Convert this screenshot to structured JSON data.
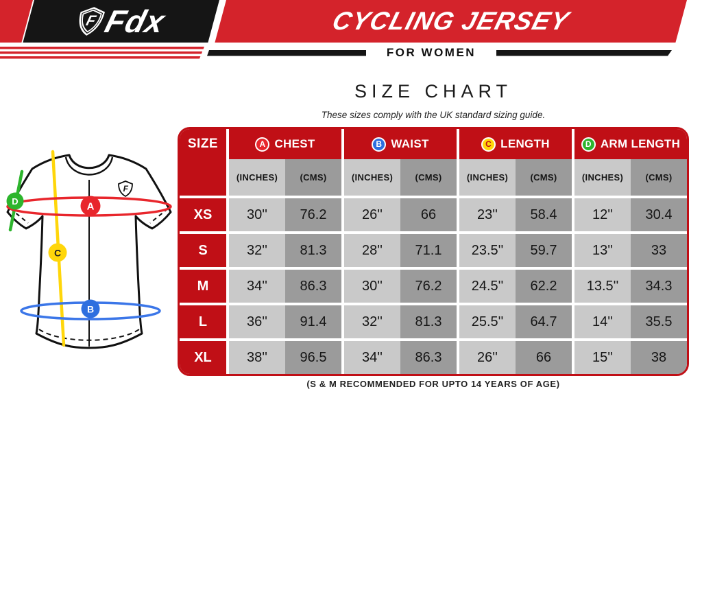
{
  "brand": {
    "logo_letter": "F",
    "logo_text": "Fdx"
  },
  "banner": {
    "title": "CYCLING JERSEY",
    "subtitle": "FOR WOMEN"
  },
  "chart_data": {
    "type": "table",
    "title": "SIZE CHART",
    "subtitle": "These sizes comply with the UK standard sizing guide.",
    "footnote": "(S & M RECOMMENDED FOR UPTO 14 YEARS OF AGE)",
    "column_groups": [
      "CHEST",
      "WAIST",
      "LENGTH",
      "ARM LENGTH"
    ],
    "units": [
      "(INCHES)",
      "(CMS)"
    ],
    "rows": [
      {
        "size": "XS",
        "chest_in": "30''",
        "chest_cm": "76.2",
        "waist_in": "26''",
        "waist_cm": "66",
        "length_in": "23''",
        "length_cm": "58.4",
        "arm_in": "12''",
        "arm_cm": "30.4"
      },
      {
        "size": "S",
        "chest_in": "32''",
        "chest_cm": "81.3",
        "waist_in": "28''",
        "waist_cm": "71.1",
        "length_in": "23.5''",
        "length_cm": "59.7",
        "arm_in": "13''",
        "arm_cm": "33"
      },
      {
        "size": "M",
        "chest_in": "34''",
        "chest_cm": "86.3",
        "waist_in": "30''",
        "waist_cm": "76.2",
        "length_in": "24.5''",
        "length_cm": "62.2",
        "arm_in": "13.5''",
        "arm_cm": "34.3"
      },
      {
        "size": "L",
        "chest_in": "36''",
        "chest_cm": "91.4",
        "waist_in": "32''",
        "waist_cm": "81.3",
        "length_in": "25.5''",
        "length_cm": "64.7",
        "arm_in": "14''",
        "arm_cm": "35.5"
      },
      {
        "size": "XL",
        "chest_in": "38''",
        "chest_cm": "96.5",
        "waist_in": "34''",
        "waist_cm": "86.3",
        "length_in": "26''",
        "length_cm": "66",
        "arm_in": "15''",
        "arm_cm": "38"
      }
    ]
  },
  "table": {
    "size_header": "SIZE",
    "groups": [
      {
        "key": "A",
        "label": "CHEST",
        "color": "#e8262c",
        "letter_color": "#ffffff"
      },
      {
        "key": "B",
        "label": "WAIST",
        "color": "#2e6fdf",
        "letter_color": "#ffffff"
      },
      {
        "key": "C",
        "label": "LENGTH",
        "color": "#ffd60a",
        "letter_color": "#c00f16"
      },
      {
        "key": "D",
        "label": "ARM LENGTH",
        "color": "#2db52d",
        "letter_color": "#ffffff"
      }
    ],
    "subheaders": [
      "(INCHES)",
      "(CMS)"
    ],
    "rows": [
      {
        "size": "XS",
        "values": [
          "30''",
          "76.2",
          "26''",
          "66",
          "23''",
          "58.4",
          "12''",
          "30.4"
        ]
      },
      {
        "size": "S",
        "values": [
          "32''",
          "81.3",
          "28''",
          "71.1",
          "23.5''",
          "59.7",
          "13''",
          "33"
        ]
      },
      {
        "size": "M",
        "values": [
          "34''",
          "86.3",
          "30''",
          "76.2",
          "24.5''",
          "62.2",
          "13.5''",
          "34.3"
        ]
      },
      {
        "size": "L",
        "values": [
          "36''",
          "91.4",
          "32''",
          "81.3",
          "25.5''",
          "64.7",
          "14''",
          "35.5"
        ]
      },
      {
        "size": "XL",
        "values": [
          "38''",
          "96.5",
          "34''",
          "86.3",
          "26''",
          "66",
          "15''",
          "38"
        ]
      }
    ]
  },
  "diagram": {
    "markers": [
      {
        "letter": "A",
        "measure": "Chest"
      },
      {
        "letter": "B",
        "measure": "Waist"
      },
      {
        "letter": "C",
        "measure": "Length"
      },
      {
        "letter": "D",
        "measure": "Arm Length"
      }
    ]
  },
  "colors": {
    "banner_red": "#d4232b",
    "table_red": "#c00f16",
    "light_gray": "#c9c9c9",
    "dark_gray": "#9b9b9b",
    "marker_red": "#e8262c",
    "marker_blue": "#2e6fdf",
    "marker_yellow": "#ffd60a",
    "marker_green": "#2db52d"
  }
}
